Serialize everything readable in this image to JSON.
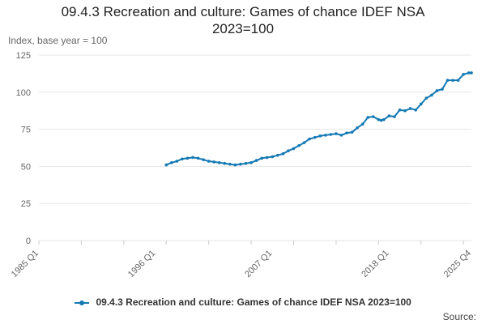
{
  "title_line1": "09.4.3 Recreation and culture: Games of chance IDEF NSA",
  "title_line2": "2023=100",
  "source_label": "Source:",
  "colors": {
    "series": "#1479b4",
    "grid": "#e6e6e6",
    "axis_text": "#666666"
  },
  "chart_data": {
    "type": "line",
    "ylabel": "Index, base year = 100",
    "xlabel": "",
    "ylim": [
      0,
      125
    ],
    "yticks": [
      0,
      25,
      50,
      75,
      100,
      125
    ],
    "xlim": [
      "1985 Q1",
      "2025 Q4"
    ],
    "xtick_labels": [
      "1985 Q1",
      "1996 Q1",
      "2007 Q1",
      "2018 Q1",
      "2025 Q4"
    ],
    "grid": true,
    "legend_position": "bottom",
    "series": [
      {
        "name": "09.4.3 Recreation and culture: Games of chance IDEF NSA 2023=100",
        "x": [
          "1997 Q1",
          "1997 Q3",
          "1998 Q1",
          "1998 Q3",
          "1999 Q1",
          "1999 Q3",
          "2000 Q1",
          "2000 Q3",
          "2001 Q1",
          "2001 Q3",
          "2002 Q1",
          "2002 Q3",
          "2003 Q1",
          "2003 Q3",
          "2004 Q1",
          "2004 Q3",
          "2005 Q1",
          "2005 Q3",
          "2006 Q1",
          "2006 Q3",
          "2007 Q1",
          "2007 Q3",
          "2008 Q1",
          "2008 Q3",
          "2009 Q1",
          "2009 Q3",
          "2010 Q1",
          "2010 Q3",
          "2011 Q1",
          "2011 Q3",
          "2012 Q1",
          "2012 Q3",
          "2013 Q1",
          "2013 Q3",
          "2014 Q1",
          "2014 Q3",
          "2015 Q1",
          "2015 Q3",
          "2016 Q1",
          "2016 Q3",
          "2017 Q1",
          "2017 Q2",
          "2017 Q3",
          "2018 Q1",
          "2018 Q3",
          "2019 Q1",
          "2019 Q3",
          "2020 Q1",
          "2020 Q3",
          "2021 Q1",
          "2021 Q3",
          "2022 Q1",
          "2022 Q3",
          "2023 Q1",
          "2023 Q3",
          "2024 Q1",
          "2024 Q3",
          "2025 Q1",
          "2025 Q3",
          "2025 Q4"
        ],
        "values": [
          51,
          52.5,
          53.5,
          55,
          55.5,
          56,
          55.5,
          54.5,
          53.5,
          53,
          52.5,
          52,
          51.5,
          51,
          51.5,
          52,
          52.5,
          54,
          55.5,
          56,
          56.5,
          57.5,
          58.5,
          60.5,
          62,
          64,
          66,
          68.5,
          69.5,
          70.5,
          71,
          71.5,
          72,
          71,
          72.5,
          73,
          76,
          78.5,
          83,
          83.5,
          81.5,
          81,
          81.5,
          84,
          83.5,
          88,
          87.5,
          89,
          88,
          92,
          96,
          98,
          101,
          102,
          108,
          108,
          108,
          112,
          113,
          113
        ]
      }
    ]
  }
}
